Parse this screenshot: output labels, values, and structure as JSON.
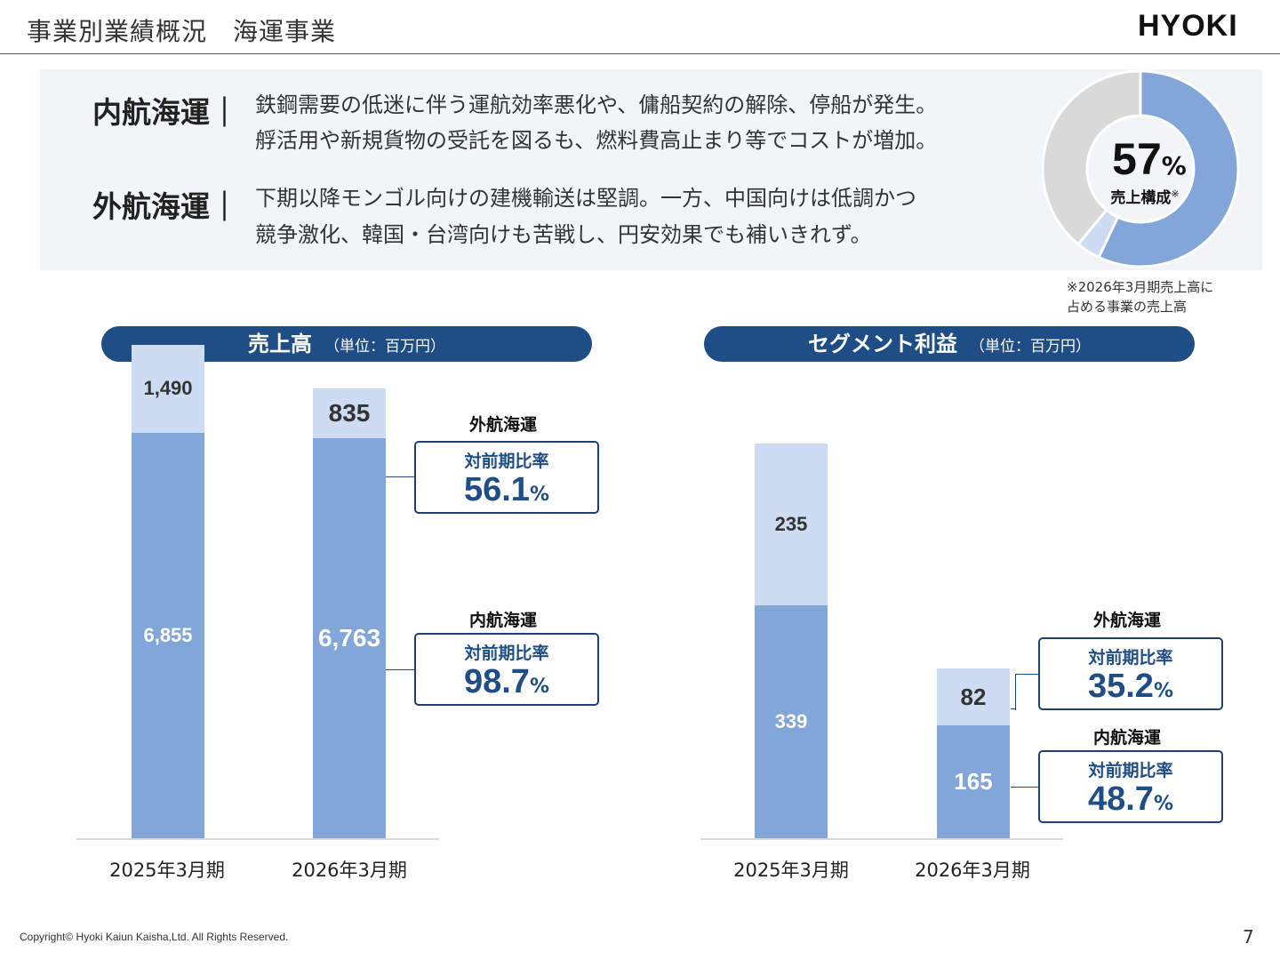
{
  "header": {
    "title": "事業別業績概況　海運事業",
    "logo": "HYOKI"
  },
  "summary": {
    "items": [
      {
        "label": "内航海運｜",
        "lines": [
          "鉄鋼需要の低迷に伴う運航効率悪化や、傭船契約の解除、停船が発生。",
          "艀活用や新規貨物の受託を図るも、燃料費高止まり等でコストが増加。"
        ]
      },
      {
        "label": "外航海運｜",
        "lines": [
          "下期以降モンゴル向けの建機輸送は堅調。一方、中国向けは低調かつ",
          "競争激化、韓国・台湾向けも苦戦し、円安効果でも補いきれず。"
        ]
      }
    ],
    "donut": {
      "percent_value": "57",
      "percent_unit": "%",
      "label": "売上構成",
      "label_mark": "※",
      "share": 0.57,
      "secondary_share": 0.04
    },
    "note_lines": [
      "※2026年3月期売上高に",
      "占める事業の売上高"
    ]
  },
  "colors": {
    "accent": "#1f4e86",
    "bar_dark": "#82a6d8",
    "bar_light": "#cddcf2",
    "donut_rest": "#d9d9d9"
  },
  "chart_data": [
    {
      "type": "bar",
      "stacked": true,
      "title": "売上高",
      "unit": "（単位：百万円）",
      "categories": [
        "2025年3月期",
        "2026年3月期"
      ],
      "series": [
        {
          "name": "内航海運",
          "values": [
            6855,
            6763
          ],
          "labels": [
            "6,855",
            "6,763"
          ]
        },
        {
          "name": "外航海運",
          "values": [
            1490,
            835
          ],
          "labels": [
            "1,490",
            "835"
          ]
        }
      ],
      "ylim": [
        0,
        8400
      ],
      "grid": false,
      "annotations": [
        {
          "series": "外航海運",
          "title": "外航海運",
          "label": "対前期比率",
          "value": "56.1",
          "unit": "%"
        },
        {
          "series": "内航海運",
          "title": "内航海運",
          "label": "対前期比率",
          "value": "98.7",
          "unit": "%"
        }
      ]
    },
    {
      "type": "bar",
      "stacked": true,
      "title": "セグメント利益",
      "unit": "（単位：百万円）",
      "categories": [
        "2025年3月期",
        "2026年3月期"
      ],
      "series": [
        {
          "name": "内航海運",
          "values": [
            339,
            165
          ],
          "labels": [
            "339",
            "165"
          ]
        },
        {
          "name": "外航海運",
          "values": [
            235,
            82
          ],
          "labels": [
            "235",
            "82"
          ]
        }
      ],
      "ylim": [
        0,
        722
      ],
      "grid": false,
      "annotations": [
        {
          "series": "外航海運",
          "title": "外航海運",
          "label": "対前期比率",
          "value": "35.2",
          "unit": "%"
        },
        {
          "series": "内航海運",
          "title": "内航海運",
          "label": "対前期比率",
          "value": "48.7",
          "unit": "%"
        }
      ]
    }
  ],
  "footer": {
    "copyright": "Copyright© Hyoki Kaiun Kaisha,Ltd. All Rights Reserved.",
    "page": "7"
  }
}
